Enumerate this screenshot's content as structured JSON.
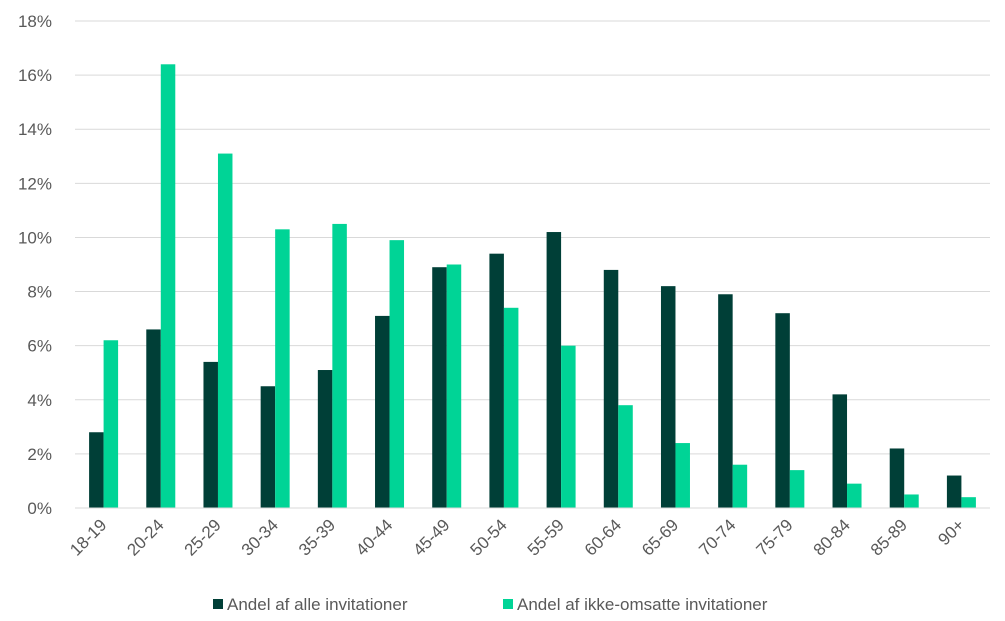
{
  "chart_data": {
    "type": "bar",
    "categories": [
      "18-19",
      "20-24",
      "25-29",
      "30-34",
      "35-39",
      "40-44",
      "45-49",
      "50-54",
      "55-59",
      "60-64",
      "65-69",
      "70-74",
      "75-79",
      "80-84",
      "85-89",
      "90+"
    ],
    "series": [
      {
        "name": "Andel af alle invitationer",
        "color": "#003f37",
        "values": [
          2.8,
          6.6,
          5.4,
          4.5,
          5.1,
          7.1,
          8.9,
          9.4,
          10.2,
          8.8,
          8.2,
          7.9,
          7.2,
          4.2,
          2.2,
          1.2
        ]
      },
      {
        "name": "Andel af ikke-omsatte invitationer",
        "color": "#00d496",
        "values": [
          6.2,
          16.4,
          13.1,
          10.3,
          10.5,
          9.9,
          9.0,
          7.4,
          6.0,
          3.8,
          2.4,
          1.6,
          1.4,
          0.9,
          0.5,
          0.4
        ]
      }
    ],
    "yticks": [
      "0%",
      "2%",
      "4%",
      "6%",
      "8%",
      "10%",
      "12%",
      "14%",
      "16%",
      "18%"
    ],
    "ylim": [
      0,
      18
    ],
    "grid": true,
    "legend": "bottom-center"
  }
}
